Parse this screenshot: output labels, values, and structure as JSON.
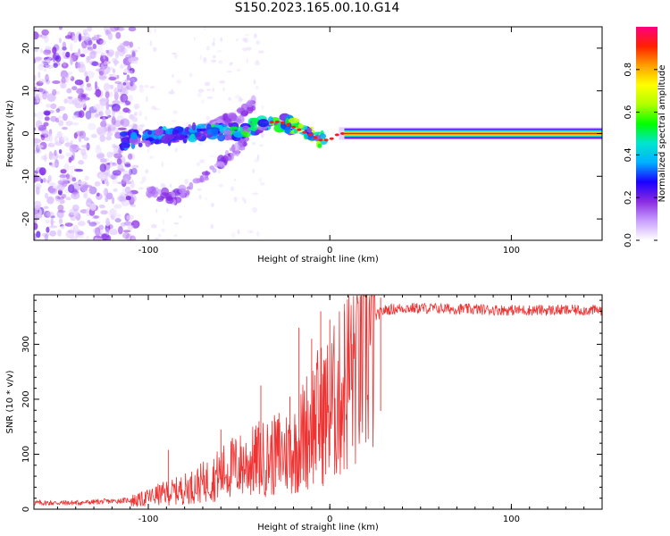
{
  "figure": {
    "title": "S150.2023.165.00.10.G14"
  },
  "chart_data": [
    {
      "type": "heatmap",
      "xlabel": "Height of straight line (km)",
      "ylabel": "Frequency (Hz)",
      "xlim": [
        -163,
        150
      ],
      "ylim": [
        -25,
        25
      ],
      "xticks": [
        -100,
        0,
        100
      ],
      "yticks": [
        -20,
        -10,
        0,
        10,
        20
      ],
      "grid": false,
      "colorbar": {
        "label": "Normalized spectral amplitude",
        "range": [
          0,
          1
        ],
        "ticks": [
          "0.0",
          "0.2",
          "0.4",
          "0.6",
          "0.8"
        ],
        "colormap": "rainbow",
        "stops": [
          "#ffffff",
          "#c9a0ff",
          "#8a2be2",
          "#1a00ff",
          "#00b0ff",
          "#00e5d0",
          "#00ff00",
          "#b0ff00",
          "#ffff00",
          "#ffa000",
          "#ff2000",
          "#ff0080"
        ]
      },
      "ridge": [
        {
          "x": -110,
          "f": -1.5
        },
        {
          "x": -100,
          "f": -1.0
        },
        {
          "x": -90,
          "f": -0.5
        },
        {
          "x": -80,
          "f": 0.0
        },
        {
          "x": -70,
          "f": 0.5
        },
        {
          "x": -60,
          "f": 0.5
        },
        {
          "x": -50,
          "f": 0.8
        },
        {
          "x": -40,
          "f": 1.5
        },
        {
          "x": -35,
          "f": 2.5
        },
        {
          "x": -30,
          "f": 2.8
        },
        {
          "x": -25,
          "f": 2.5
        },
        {
          "x": -20,
          "f": 1.5
        },
        {
          "x": -15,
          "f": 0.5
        },
        {
          "x": -10,
          "f": -0.5
        },
        {
          "x": -5,
          "f": -1.5
        },
        {
          "x": 0,
          "f": -1.5
        },
        {
          "x": 5,
          "f": 0.0
        },
        {
          "x": 150,
          "f": 0.0
        }
      ],
      "upper_branch": [
        {
          "x": -70,
          "f": 1.0
        },
        {
          "x": -60,
          "f": 2.5
        },
        {
          "x": -50,
          "f": 4.0
        },
        {
          "x": -42,
          "f": 7.0
        }
      ],
      "lower_branch": [
        {
          "x": -100,
          "f": -14.0
        },
        {
          "x": -85,
          "f": -15.0
        },
        {
          "x": -70,
          "f": -11.0
        },
        {
          "x": -55,
          "f": -5.0
        },
        {
          "x": -45,
          "f": -1.0
        }
      ]
    },
    {
      "type": "line",
      "xlabel": "Height of straight line (km)",
      "ylabel": "SNR (10 * v/v)",
      "xlim": [
        -163,
        150
      ],
      "ylim": [
        0,
        390
      ],
      "xticks": [
        -100,
        0,
        100
      ],
      "yticks": [
        0,
        100,
        200,
        300
      ],
      "grid": false,
      "series": [
        {
          "color": "#ee3333",
          "trend": [
            {
              "x": -163,
              "y": 12
            },
            {
              "x": -140,
              "y": 12
            },
            {
              "x": -120,
              "y": 15
            },
            {
              "x": -105,
              "y": 18
            },
            {
              "x": -95,
              "y": 28
            },
            {
              "x": -85,
              "y": 35
            },
            {
              "x": -75,
              "y": 45
            },
            {
              "x": -65,
              "y": 60
            },
            {
              "x": -55,
              "y": 80
            },
            {
              "x": -45,
              "y": 90
            },
            {
              "x": -35,
              "y": 100
            },
            {
              "x": -25,
              "y": 110
            },
            {
              "x": -18,
              "y": 120
            },
            {
              "x": -14,
              "y": 150
            },
            {
              "x": -10,
              "y": 170
            },
            {
              "x": -5,
              "y": 185
            },
            {
              "x": 0,
              "y": 195
            },
            {
              "x": 5,
              "y": 220
            },
            {
              "x": 10,
              "y": 260
            },
            {
              "x": 15,
              "y": 300
            },
            {
              "x": 20,
              "y": 330
            },
            {
              "x": 25,
              "y": 350
            },
            {
              "x": 30,
              "y": 362
            },
            {
              "x": 40,
              "y": 366
            },
            {
              "x": 60,
              "y": 365
            },
            {
              "x": 100,
              "y": 362
            },
            {
              "x": 150,
              "y": 362
            }
          ],
          "peaks": [
            {
              "x": -89,
              "y": 108
            },
            {
              "x": -60,
              "y": 145
            },
            {
              "x": -39,
              "y": 160
            },
            {
              "x": -38,
              "y": 225
            },
            {
              "x": -28,
              "y": 175
            },
            {
              "x": -22,
              "y": 205
            },
            {
              "x": -17,
              "y": 330
            },
            {
              "x": -10,
              "y": 310
            },
            {
              "x": -5,
              "y": 360
            },
            {
              "x": 0,
              "y": 345
            },
            {
              "x": 8,
              "y": 360
            },
            {
              "x": 28,
              "y": 385
            }
          ]
        }
      ]
    }
  ]
}
